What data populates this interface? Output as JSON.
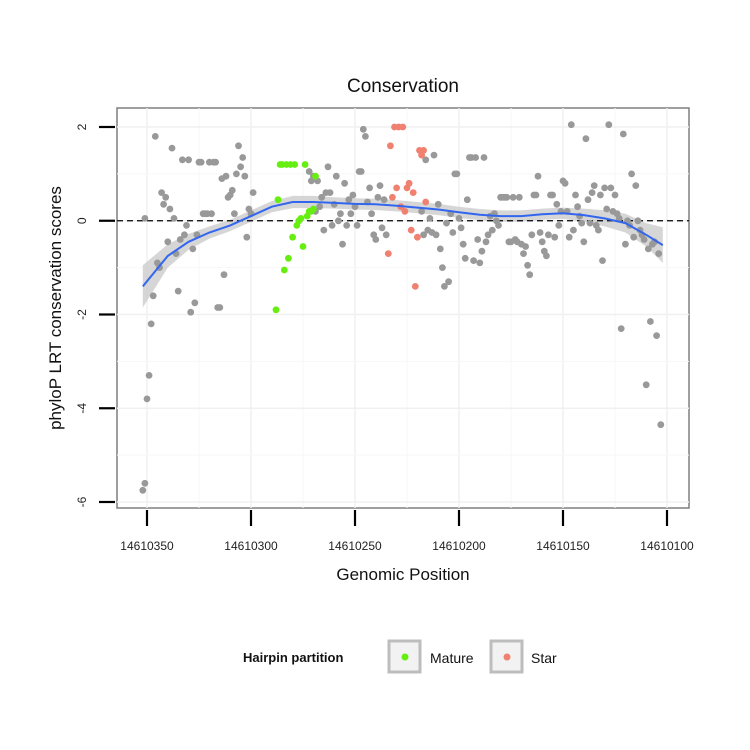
{
  "chart_data": {
    "type": "scatter",
    "title": "Conservation",
    "xlabel": "Genomic Position",
    "ylabel": "phyloP LRT conservation scores",
    "xlim": [
      14610100,
      14610355
    ],
    "x_reversed": true,
    "ylim": [
      -6,
      2.3
    ],
    "x_ticks": [
      "14610350",
      "14610300",
      "14610250",
      "14610200",
      "14610150",
      "14610100"
    ],
    "x_tick_values": [
      14610350,
      14610300,
      14610250,
      14610200,
      14610150,
      14610100
    ],
    "y_ticks": [
      "-6",
      "-4",
      "-2",
      "0",
      "2"
    ],
    "y_tick_values": [
      -6,
      -4,
      -2,
      0,
      2
    ],
    "reference_line": {
      "y": 0,
      "style": "dashed",
      "color": "#000000"
    },
    "legend": {
      "title": "Hairpin partition",
      "placement": "bottom",
      "entries": [
        {
          "label": "Mature",
          "color": "#66ee11"
        },
        {
          "label": "Star",
          "color": "#f08070"
        }
      ]
    },
    "colors": {
      "other": "#999999",
      "mature": "#66ee11",
      "star": "#f08070",
      "smooth": "#3366ee",
      "band": "#c8c8c8"
    },
    "smooth": {
      "x": [
        14610352,
        14610340,
        14610330,
        14610320,
        14610310,
        14610300,
        14610290,
        14610280,
        14610270,
        14610260,
        14610250,
        14610240,
        14610230,
        14610220,
        14610210,
        14610200,
        14610190,
        14610180,
        14610170,
        14610160,
        14610150,
        14610140,
        14610130,
        14610120,
        14610110,
        14610102
      ],
      "y": [
        -1.4,
        -0.75,
        -0.45,
        -0.25,
        -0.1,
        0.1,
        0.3,
        0.4,
        0.4,
        0.38,
        0.36,
        0.35,
        0.32,
        0.28,
        0.24,
        0.18,
        0.13,
        0.1,
        0.1,
        0.14,
        0.16,
        0.12,
        0.05,
        -0.05,
        -0.3,
        -0.52
      ],
      "lower": [
        -1.85,
        -1.0,
        -0.62,
        -0.38,
        -0.22,
        -0.02,
        0.18,
        0.27,
        0.27,
        0.26,
        0.24,
        0.23,
        0.2,
        0.16,
        0.12,
        0.06,
        0.01,
        -0.02,
        -0.02,
        0.02,
        0.04,
        -0.02,
        -0.12,
        -0.25,
        -0.55,
        -0.9
      ],
      "upper": [
        -0.95,
        -0.5,
        -0.28,
        -0.12,
        0.02,
        0.22,
        0.42,
        0.53,
        0.53,
        0.5,
        0.48,
        0.47,
        0.44,
        0.4,
        0.36,
        0.3,
        0.25,
        0.22,
        0.22,
        0.26,
        0.28,
        0.26,
        0.22,
        0.15,
        -0.05,
        -0.14
      ]
    },
    "series": [
      {
        "name": "Other",
        "color": "#999999",
        "points": [
          [
            14610352,
            -5.75
          ],
          [
            14610351,
            -5.6
          ],
          [
            14610350,
            -3.8
          ],
          [
            14610349,
            -3.3
          ],
          [
            14610348,
            -2.2
          ],
          [
            14610347,
            -1.6
          ],
          [
            14610351,
            0.05
          ],
          [
            14610346,
            1.8
          ],
          [
            14610345,
            -0.9
          ],
          [
            14610344,
            -1.0
          ],
          [
            14610343,
            0.6
          ],
          [
            14610342,
            0.35
          ],
          [
            14610341,
            0.5
          ],
          [
            14610340,
            -0.45
          ],
          [
            14610339,
            0.25
          ],
          [
            14610338,
            1.55
          ],
          [
            14610337,
            0.05
          ],
          [
            14610336,
            -0.7
          ],
          [
            14610335,
            -1.5
          ],
          [
            14610334,
            -0.4
          ],
          [
            14610333,
            1.3
          ],
          [
            14610332,
            -0.3
          ],
          [
            14610331,
            -0.1
          ],
          [
            14610330,
            1.3
          ],
          [
            14610329,
            -1.95
          ],
          [
            14610328,
            -0.6
          ],
          [
            14610327,
            -1.75
          ],
          [
            14610326,
            -0.3
          ],
          [
            14610325,
            1.25
          ],
          [
            14610324,
            1.25
          ],
          [
            14610323,
            0.15
          ],
          [
            14610322,
            0.15
          ],
          [
            14610321,
            0.15
          ],
          [
            14610320,
            1.25
          ],
          [
            14610319,
            0.15
          ],
          [
            14610318,
            1.25
          ],
          [
            14610317,
            1.25
          ],
          [
            14610316,
            -1.85
          ],
          [
            14610315,
            -1.85
          ],
          [
            14610314,
            0.9
          ],
          [
            14610313,
            -1.15
          ],
          [
            14610312,
            0.95
          ],
          [
            14610311,
            0.5
          ],
          [
            14610310,
            0.55
          ],
          [
            14610309,
            0.65
          ],
          [
            14610308,
            0.15
          ],
          [
            14610307,
            1.0
          ],
          [
            14610306,
            1.6
          ],
          [
            14610305,
            1.15
          ],
          [
            14610304,
            1.35
          ],
          [
            14610303,
            0.95
          ],
          [
            14610302,
            -0.35
          ],
          [
            14610301,
            0.25
          ],
          [
            14610300,
            0.15
          ],
          [
            14610299,
            0.6
          ],
          [
            14610272,
            1.05
          ],
          [
            14610271,
            0.85
          ],
          [
            14610270,
            0.95
          ],
          [
            14610269,
            0.2
          ],
          [
            14610268,
            0.85
          ],
          [
            14610267,
            0.3
          ],
          [
            14610266,
            0.5
          ],
          [
            14610265,
            -0.2
          ],
          [
            14610264,
            0.6
          ],
          [
            14610263,
            1.15
          ],
          [
            14610262,
            0.6
          ],
          [
            14610261,
            -0.1
          ],
          [
            14610260,
            0.35
          ],
          [
            14610259,
            0.95
          ],
          [
            14610258,
            0.0
          ],
          [
            14610257,
            0.15
          ],
          [
            14610256,
            -0.5
          ],
          [
            14610255,
            0.8
          ],
          [
            14610254,
            -0.1
          ],
          [
            14610253,
            0.45
          ],
          [
            14610252,
            0.15
          ],
          [
            14610251,
            0.55
          ],
          [
            14610250,
            0.3
          ],
          [
            14610249,
            -0.1
          ],
          [
            14610248,
            1.05
          ],
          [
            14610247,
            1.05
          ],
          [
            14610246,
            1.95
          ],
          [
            14610245,
            1.8
          ],
          [
            14610244,
            0.4
          ],
          [
            14610243,
            0.7
          ],
          [
            14610242,
            0.15
          ],
          [
            14610241,
            -0.3
          ],
          [
            14610240,
            -0.4
          ],
          [
            14610239,
            0.5
          ],
          [
            14610238,
            0.75
          ],
          [
            14610237,
            -0.15
          ],
          [
            14610236,
            0.45
          ],
          [
            14610235,
            -0.3
          ],
          [
            14610218,
            0.2
          ],
          [
            14610217,
            -0.3
          ],
          [
            14610216,
            1.3
          ],
          [
            14610215,
            -0.2
          ],
          [
            14610214,
            0.05
          ],
          [
            14610213,
            -0.25
          ],
          [
            14610212,
            1.4
          ],
          [
            14610211,
            -0.3
          ],
          [
            14610210,
            0.35
          ],
          [
            14610209,
            -0.6
          ],
          [
            14610208,
            -1.0
          ],
          [
            14610207,
            -1.4
          ],
          [
            14610206,
            -0.05
          ],
          [
            14610205,
            -1.3
          ],
          [
            14610204,
            0.15
          ],
          [
            14610203,
            -0.25
          ],
          [
            14610202,
            1.0
          ],
          [
            14610201,
            1.0
          ],
          [
            14610200,
            0.05
          ],
          [
            14610199,
            -0.15
          ],
          [
            14610198,
            -0.5
          ],
          [
            14610197,
            -0.8
          ],
          [
            14610196,
            0.45
          ],
          [
            14610195,
            1.35
          ],
          [
            14610194,
            1.35
          ],
          [
            14610193,
            -0.85
          ],
          [
            14610192,
            1.35
          ],
          [
            14610191,
            -0.4
          ],
          [
            14610190,
            -0.9
          ],
          [
            14610189,
            -0.65
          ],
          [
            14610188,
            1.35
          ],
          [
            14610187,
            -0.45
          ],
          [
            14610186,
            -0.3
          ],
          [
            14610185,
            0.1
          ],
          [
            14610184,
            -0.2
          ],
          [
            14610183,
            0.15
          ],
          [
            14610182,
            0.0
          ],
          [
            14610181,
            -0.1
          ],
          [
            14610180,
            0.5
          ],
          [
            14610179,
            0.5
          ],
          [
            14610178,
            0.5
          ],
          [
            14610177,
            0.5
          ],
          [
            14610176,
            -0.45
          ],
          [
            14610175,
            -0.45
          ],
          [
            14610174,
            0.5
          ],
          [
            14610173,
            -0.4
          ],
          [
            14610172,
            -0.45
          ],
          [
            14610171,
            0.5
          ],
          [
            14610170,
            -0.5
          ],
          [
            14610169,
            -0.7
          ],
          [
            14610168,
            -0.55
          ],
          [
            14610167,
            -0.95
          ],
          [
            14610166,
            -1.15
          ],
          [
            14610165,
            -0.3
          ],
          [
            14610164,
            0.55
          ],
          [
            14610163,
            0.55
          ],
          [
            14610162,
            0.95
          ],
          [
            14610161,
            -0.25
          ],
          [
            14610160,
            -0.45
          ],
          [
            14610159,
            -0.65
          ],
          [
            14610158,
            -0.75
          ],
          [
            14610157,
            -0.3
          ],
          [
            14610156,
            0.55
          ],
          [
            14610155,
            0.55
          ],
          [
            14610154,
            -0.35
          ],
          [
            14610153,
            0.35
          ],
          [
            14610152,
            -0.1
          ],
          [
            14610151,
            0.2
          ],
          [
            14610150,
            0.85
          ],
          [
            14610149,
            0.8
          ],
          [
            14610148,
            0.2
          ],
          [
            14610147,
            -0.35
          ],
          [
            14610146,
            2.05
          ],
          [
            14610145,
            -0.2
          ],
          [
            14610144,
            0.55
          ],
          [
            14610143,
            0.3
          ],
          [
            14610142,
            0.1
          ],
          [
            14610141,
            -0.05
          ],
          [
            14610140,
            -0.45
          ],
          [
            14610139,
            1.75
          ],
          [
            14610138,
            0.45
          ],
          [
            14610137,
            -0.05
          ],
          [
            14610136,
            0.6
          ],
          [
            14610135,
            0.75
          ],
          [
            14610134,
            -0.1
          ],
          [
            14610133,
            -0.2
          ],
          [
            14610132,
            0.55
          ],
          [
            14610131,
            -0.85
          ],
          [
            14610130,
            0.7
          ],
          [
            14610129,
            0.25
          ],
          [
            14610128,
            2.05
          ],
          [
            14610127,
            0.7
          ],
          [
            14610126,
            0.2
          ],
          [
            14610125,
            0.55
          ],
          [
            14610124,
            0.15
          ],
          [
            14610123,
            0.05
          ],
          [
            14610122,
            -2.3
          ],
          [
            14610121,
            1.85
          ],
          [
            14610120,
            -0.5
          ],
          [
            14610119,
            0.0
          ],
          [
            14610118,
            -0.1
          ],
          [
            14610117,
            1.0
          ],
          [
            14610116,
            -0.35
          ],
          [
            14610115,
            0.75
          ],
          [
            14610114,
            0.0
          ],
          [
            14610113,
            -0.2
          ],
          [
            14610112,
            -0.3
          ],
          [
            14610111,
            -0.4
          ],
          [
            14610110,
            -3.5
          ],
          [
            14610109,
            -0.6
          ],
          [
            14610108,
            -2.15
          ],
          [
            14610107,
            -0.5
          ],
          [
            14610106,
            -0.45
          ],
          [
            14610105,
            -2.45
          ],
          [
            14610104,
            -0.7
          ],
          [
            14610103,
            -4.35
          ]
        ]
      },
      {
        "name": "Mature",
        "color": "#66ee11",
        "points": [
          [
            14610288,
            -1.9
          ],
          [
            14610287,
            0.45
          ],
          [
            14610286,
            1.2
          ],
          [
            14610285,
            1.2
          ],
          [
            14610284,
            -1.05
          ],
          [
            14610283,
            1.2
          ],
          [
            14610282,
            -0.8
          ],
          [
            14610281,
            1.2
          ],
          [
            14610280,
            -0.35
          ],
          [
            14610279,
            1.2
          ],
          [
            14610278,
            -0.1
          ],
          [
            14610277,
            0.0
          ],
          [
            14610276,
            0.05
          ],
          [
            14610275,
            -0.55
          ],
          [
            14610274,
            1.2
          ],
          [
            14610273,
            0.1
          ],
          [
            14610272,
            0.2
          ],
          [
            14610271,
            0.2
          ],
          [
            14610270,
            0.25
          ],
          [
            14610269,
            0.95
          ]
        ]
      },
      {
        "name": "Star",
        "color": "#f08070",
        "points": [
          [
            14610234,
            -0.7
          ],
          [
            14610233,
            1.6
          ],
          [
            14610232,
            0.5
          ],
          [
            14610231,
            2.0
          ],
          [
            14610230,
            0.7
          ],
          [
            14610229,
            2.0
          ],
          [
            14610228,
            0.3
          ],
          [
            14610227,
            2.0
          ],
          [
            14610226,
            0.2
          ],
          [
            14610225,
            0.7
          ],
          [
            14610224,
            0.8
          ],
          [
            14610223,
            -0.2
          ],
          [
            14610222,
            0.6
          ],
          [
            14610221,
            -1.4
          ],
          [
            14610220,
            -0.35
          ],
          [
            14610219,
            1.5
          ],
          [
            14610218,
            1.4
          ],
          [
            14610217,
            1.5
          ],
          [
            14610216,
            0.4
          ]
        ]
      }
    ]
  }
}
